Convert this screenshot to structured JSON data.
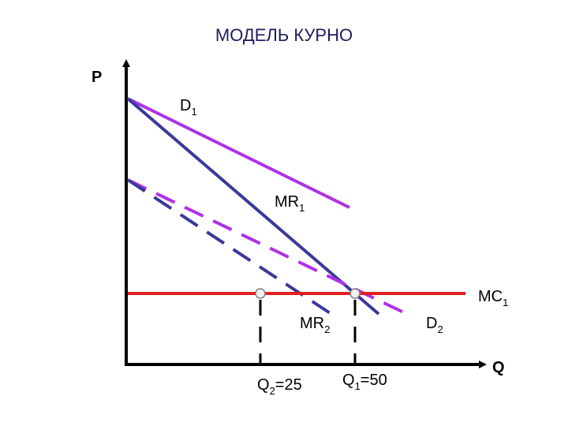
{
  "title": "МОДЕЛЬ КУРНО",
  "axes": {
    "y": "P",
    "x": "Q"
  },
  "labels": {
    "d1": {
      "main": "D",
      "sub": "1"
    },
    "mr1": {
      "main": "MR",
      "sub": "1"
    },
    "mc1": {
      "main": "MC",
      "sub": "1"
    },
    "mr2": {
      "main": "MR",
      "sub": "2"
    },
    "d2": {
      "main": "D",
      "sub": "2"
    },
    "q2": {
      "main": "Q",
      "sub": "2",
      "rest": "=25"
    },
    "q1": {
      "main": "Q",
      "sub": "1",
      "rest": "=50"
    }
  }
}
